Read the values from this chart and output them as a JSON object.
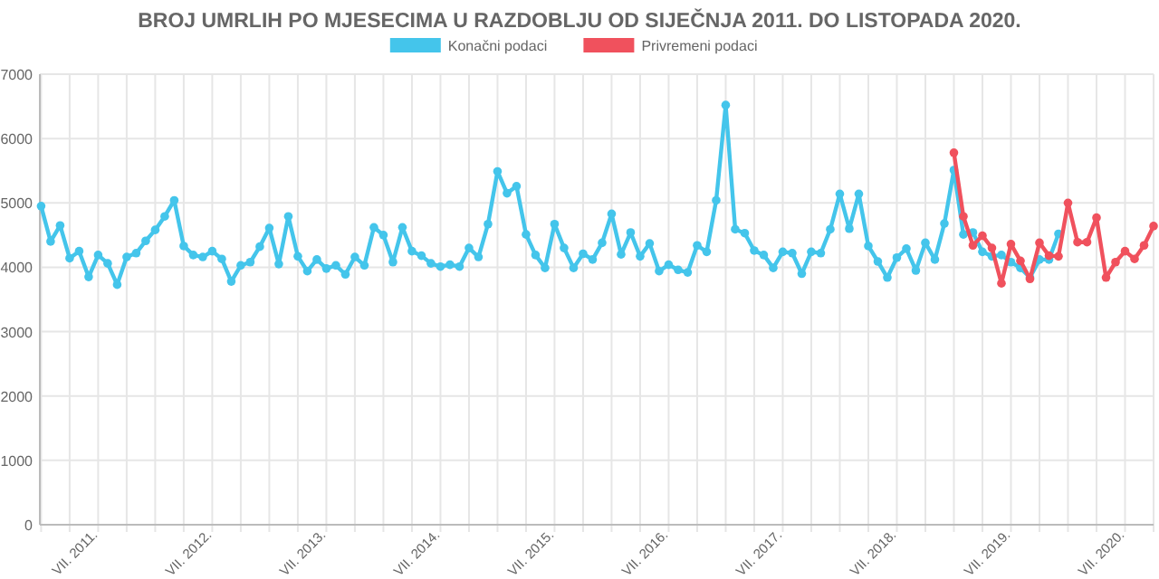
{
  "chart_data": {
    "type": "line",
    "title": "BROJ UMRLIH PO MJESECIMA U RAZDOBLJU OD SIJEČNJA 2011. DO LISTOPADA 2020.",
    "categories": [
      null,
      null,
      null,
      null,
      null,
      null,
      "VII. 2011.",
      null,
      null,
      null,
      null,
      null,
      null,
      null,
      null,
      null,
      null,
      null,
      "VII. 2012.",
      null,
      null,
      null,
      null,
      null,
      null,
      null,
      null,
      null,
      null,
      null,
      "VII. 2013.",
      null,
      null,
      null,
      null,
      null,
      null,
      null,
      null,
      null,
      null,
      null,
      "VII. 2014.",
      null,
      null,
      null,
      null,
      null,
      null,
      null,
      null,
      null,
      null,
      null,
      "VII. 2015.",
      null,
      null,
      null,
      null,
      null,
      null,
      null,
      null,
      null,
      null,
      null,
      "VII. 2016.",
      null,
      null,
      null,
      null,
      null,
      null,
      null,
      null,
      null,
      null,
      null,
      "VII. 2017.",
      null,
      null,
      null,
      null,
      null,
      null,
      null,
      null,
      null,
      null,
      null,
      "VII. 2018.",
      null,
      null,
      null,
      null,
      null,
      null,
      null,
      null,
      null,
      null,
      null,
      "VII. 2019.",
      null,
      null,
      null,
      null,
      null,
      null,
      null,
      null,
      null,
      null,
      null,
      "VII. 2020.",
      null,
      null,
      null
    ],
    "series": [
      {
        "name": "Konačni podaci",
        "color": "#44c5eb",
        "values": [
          4950,
          4400,
          4650,
          4140,
          4250,
          3850,
          4190,
          4060,
          3730,
          4160,
          4220,
          4410,
          4580,
          4790,
          5040,
          4330,
          4190,
          4160,
          4250,
          4130,
          3780,
          4030,
          4080,
          4320,
          4610,
          4050,
          4790,
          4170,
          3940,
          4120,
          3980,
          4030,
          3890,
          4160,
          4030,
          4620,
          4500,
          4080,
          4620,
          4250,
          4180,
          4060,
          4010,
          4040,
          4010,
          4300,
          4160,
          4670,
          5490,
          5150,
          5260,
          4510,
          4190,
          3990,
          4670,
          4300,
          3990,
          4210,
          4120,
          4380,
          4830,
          4200,
          4540,
          4170,
          4370,
          3940,
          4040,
          3960,
          3920,
          4340,
          4240,
          5040,
          6520,
          4590,
          4530,
          4260,
          4190,
          3990,
          4240,
          4220,
          3900,
          4240,
          4220,
          4590,
          5140,
          4600,
          5140,
          4330,
          4090,
          3840,
          4150,
          4290,
          3950,
          4380,
          4120,
          4680,
          5510,
          4510,
          4540,
          4240,
          4170,
          4190,
          4080,
          3990,
          3840,
          4120,
          4120,
          4520,
          null,
          null,
          null,
          null,
          null,
          null,
          null,
          null,
          null,
          null
        ]
      },
      {
        "name": "Privremeni podaci",
        "color": "#f0515d",
        "values": [
          null,
          null,
          null,
          null,
          null,
          null,
          null,
          null,
          null,
          null,
          null,
          null,
          null,
          null,
          null,
          null,
          null,
          null,
          null,
          null,
          null,
          null,
          null,
          null,
          null,
          null,
          null,
          null,
          null,
          null,
          null,
          null,
          null,
          null,
          null,
          null,
          null,
          null,
          null,
          null,
          null,
          null,
          null,
          null,
          null,
          null,
          null,
          null,
          null,
          null,
          null,
          null,
          null,
          null,
          null,
          null,
          null,
          null,
          null,
          null,
          null,
          null,
          null,
          null,
          null,
          null,
          null,
          null,
          null,
          null,
          null,
          null,
          null,
          null,
          null,
          null,
          null,
          null,
          null,
          null,
          null,
          null,
          null,
          null,
          null,
          null,
          null,
          null,
          null,
          null,
          null,
          null,
          null,
          null,
          null,
          null,
          5780,
          4790,
          4340,
          4490,
          4300,
          3750,
          4360,
          4100,
          3820,
          4380,
          4180,
          4170,
          5000,
          4390,
          4390,
          4770,
          3840,
          4080,
          4250,
          4130,
          4340,
          4640
        ]
      }
    ],
    "ylim": [
      0,
      7000
    ],
    "yticks": [
      0,
      1000,
      2000,
      3000,
      4000,
      5000,
      6000,
      7000
    ],
    "grid": true,
    "legend": "top",
    "marker": "circle",
    "line_style": "solid"
  }
}
